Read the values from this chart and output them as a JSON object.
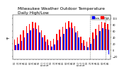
{
  "title": "Milwaukee Weather Outdoor Temperature\nDaily High/Low",
  "title_fontsize": 4.2,
  "bar_width": 0.35,
  "background_color": "#ffffff",
  "high_color": "#ff0000",
  "low_color": "#0000ff",
  "highlight_region": [
    26,
    30
  ],
  "ylabel": "°F",
  "ylabel_fontsize": 3.5,
  "ylim": [
    -30,
    110
  ],
  "yticks": [
    -20,
    0,
    20,
    40,
    60,
    80,
    100
  ],
  "categories": [
    "1/1",
    "2/1",
    "3/1",
    "4/1",
    "5/1",
    "6/1",
    "7/1",
    "8/1",
    "9/1",
    "10/1",
    "11/1",
    "12/1",
    "1/2",
    "2/2",
    "3/2",
    "4/2",
    "5/2",
    "6/2",
    "7/2",
    "8/2",
    "9/2",
    "10/2",
    "11/2",
    "12/2",
    "1/3",
    "2/3",
    "3/3",
    "4/3",
    "5/3",
    "6/3",
    "7/3",
    "8/3"
  ],
  "highs": [
    32,
    38,
    48,
    62,
    74,
    82,
    88,
    85,
    76,
    62,
    45,
    33,
    28,
    35,
    50,
    64,
    72,
    85,
    90,
    86,
    75,
    60,
    42,
    30,
    25,
    38,
    55,
    65,
    78,
    88,
    85,
    82
  ],
  "lows": [
    14,
    18,
    28,
    40,
    52,
    62,
    68,
    65,
    55,
    40,
    25,
    15,
    10,
    16,
    30,
    42,
    50,
    65,
    70,
    68,
    54,
    38,
    22,
    12,
    8,
    18,
    35,
    45,
    58,
    68,
    66,
    63
  ],
  "special_lows": [
    null,
    null,
    null,
    null,
    null,
    null,
    null,
    null,
    null,
    null,
    null,
    null,
    null,
    null,
    null,
    null,
    null,
    null,
    null,
    null,
    null,
    null,
    null,
    null,
    null,
    null,
    null,
    null,
    null,
    null,
    null,
    -15
  ],
  "dashed_lines": [
    25,
    30
  ],
  "legend_high": "High",
  "legend_low": "Low"
}
